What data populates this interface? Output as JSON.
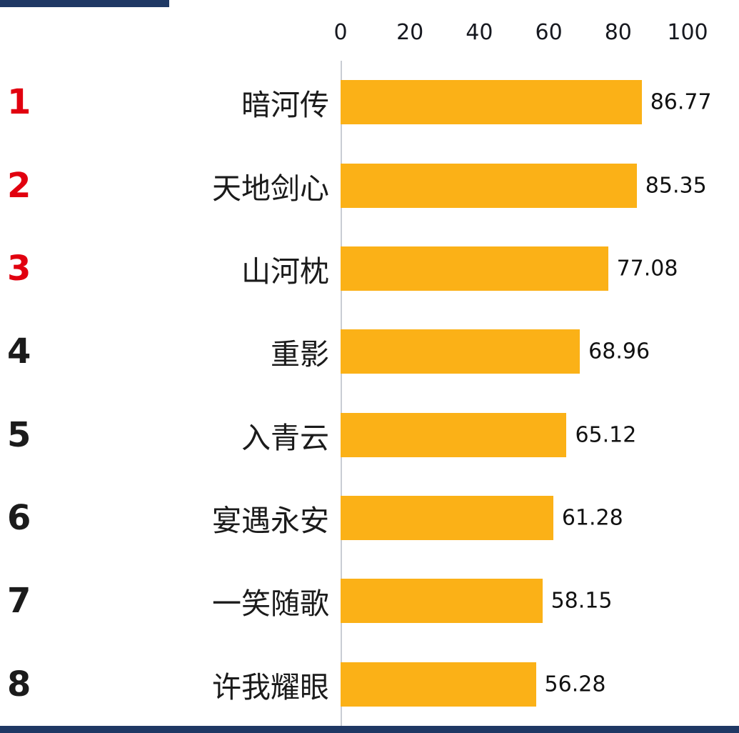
{
  "chart_data": {
    "type": "bar",
    "orientation": "horizontal",
    "title": "",
    "xlabel": "",
    "ylabel": "",
    "legend": "none",
    "grid": "off",
    "x_axis": {
      "position": "top",
      "xlim": [
        0,
        100
      ],
      "ticks": [
        0,
        20,
        40,
        60,
        80,
        100
      ],
      "tick_labels": [
        "0",
        "20",
        "40",
        "60",
        "80",
        "100"
      ]
    },
    "categories": [
      "暗河传",
      "天地剑心",
      "山河枕",
      "重影",
      "入青云",
      "宴遇永安",
      "一笑随歌",
      "许我耀眼"
    ],
    "values": [
      86.77,
      85.35,
      77.08,
      68.96,
      65.12,
      61.28,
      58.15,
      56.28
    ],
    "rows": [
      {
        "rank": "1",
        "label": "暗河传",
        "value": 86.77,
        "value_label": "86.77",
        "rank_color": "#E1000F"
      },
      {
        "rank": "2",
        "label": "天地剑心",
        "value": 85.35,
        "value_label": "85.35",
        "rank_color": "#E1000F"
      },
      {
        "rank": "3",
        "label": "山河枕",
        "value": 77.08,
        "value_label": "77.08",
        "rank_color": "#E1000F"
      },
      {
        "rank": "4",
        "label": "重影",
        "value": 68.96,
        "value_label": "68.96",
        "rank_color": "#1B1B1B"
      },
      {
        "rank": "5",
        "label": "入青云",
        "value": 65.12,
        "value_label": "65.12",
        "rank_color": "#1B1B1B"
      },
      {
        "rank": "6",
        "label": "宴遇永安",
        "value": 61.28,
        "value_label": "61.28",
        "rank_color": "#1B1B1B"
      },
      {
        "rank": "7",
        "label": "一笑随歌",
        "value": 58.15,
        "value_label": "58.15",
        "rank_color": "#1B1B1B"
      },
      {
        "rank": "8",
        "label": "许我耀眼",
        "value": 56.28,
        "value_label": "56.28",
        "rank_color": "#1B1B1B"
      }
    ],
    "colors": {
      "bar": "#FBB117",
      "rank_top3": "#E1000F",
      "rank_default": "#1B1B1B",
      "accent_strip": "#1F3864",
      "axis_line": "#C9CDD4",
      "tick_text": "#16181F"
    }
  }
}
